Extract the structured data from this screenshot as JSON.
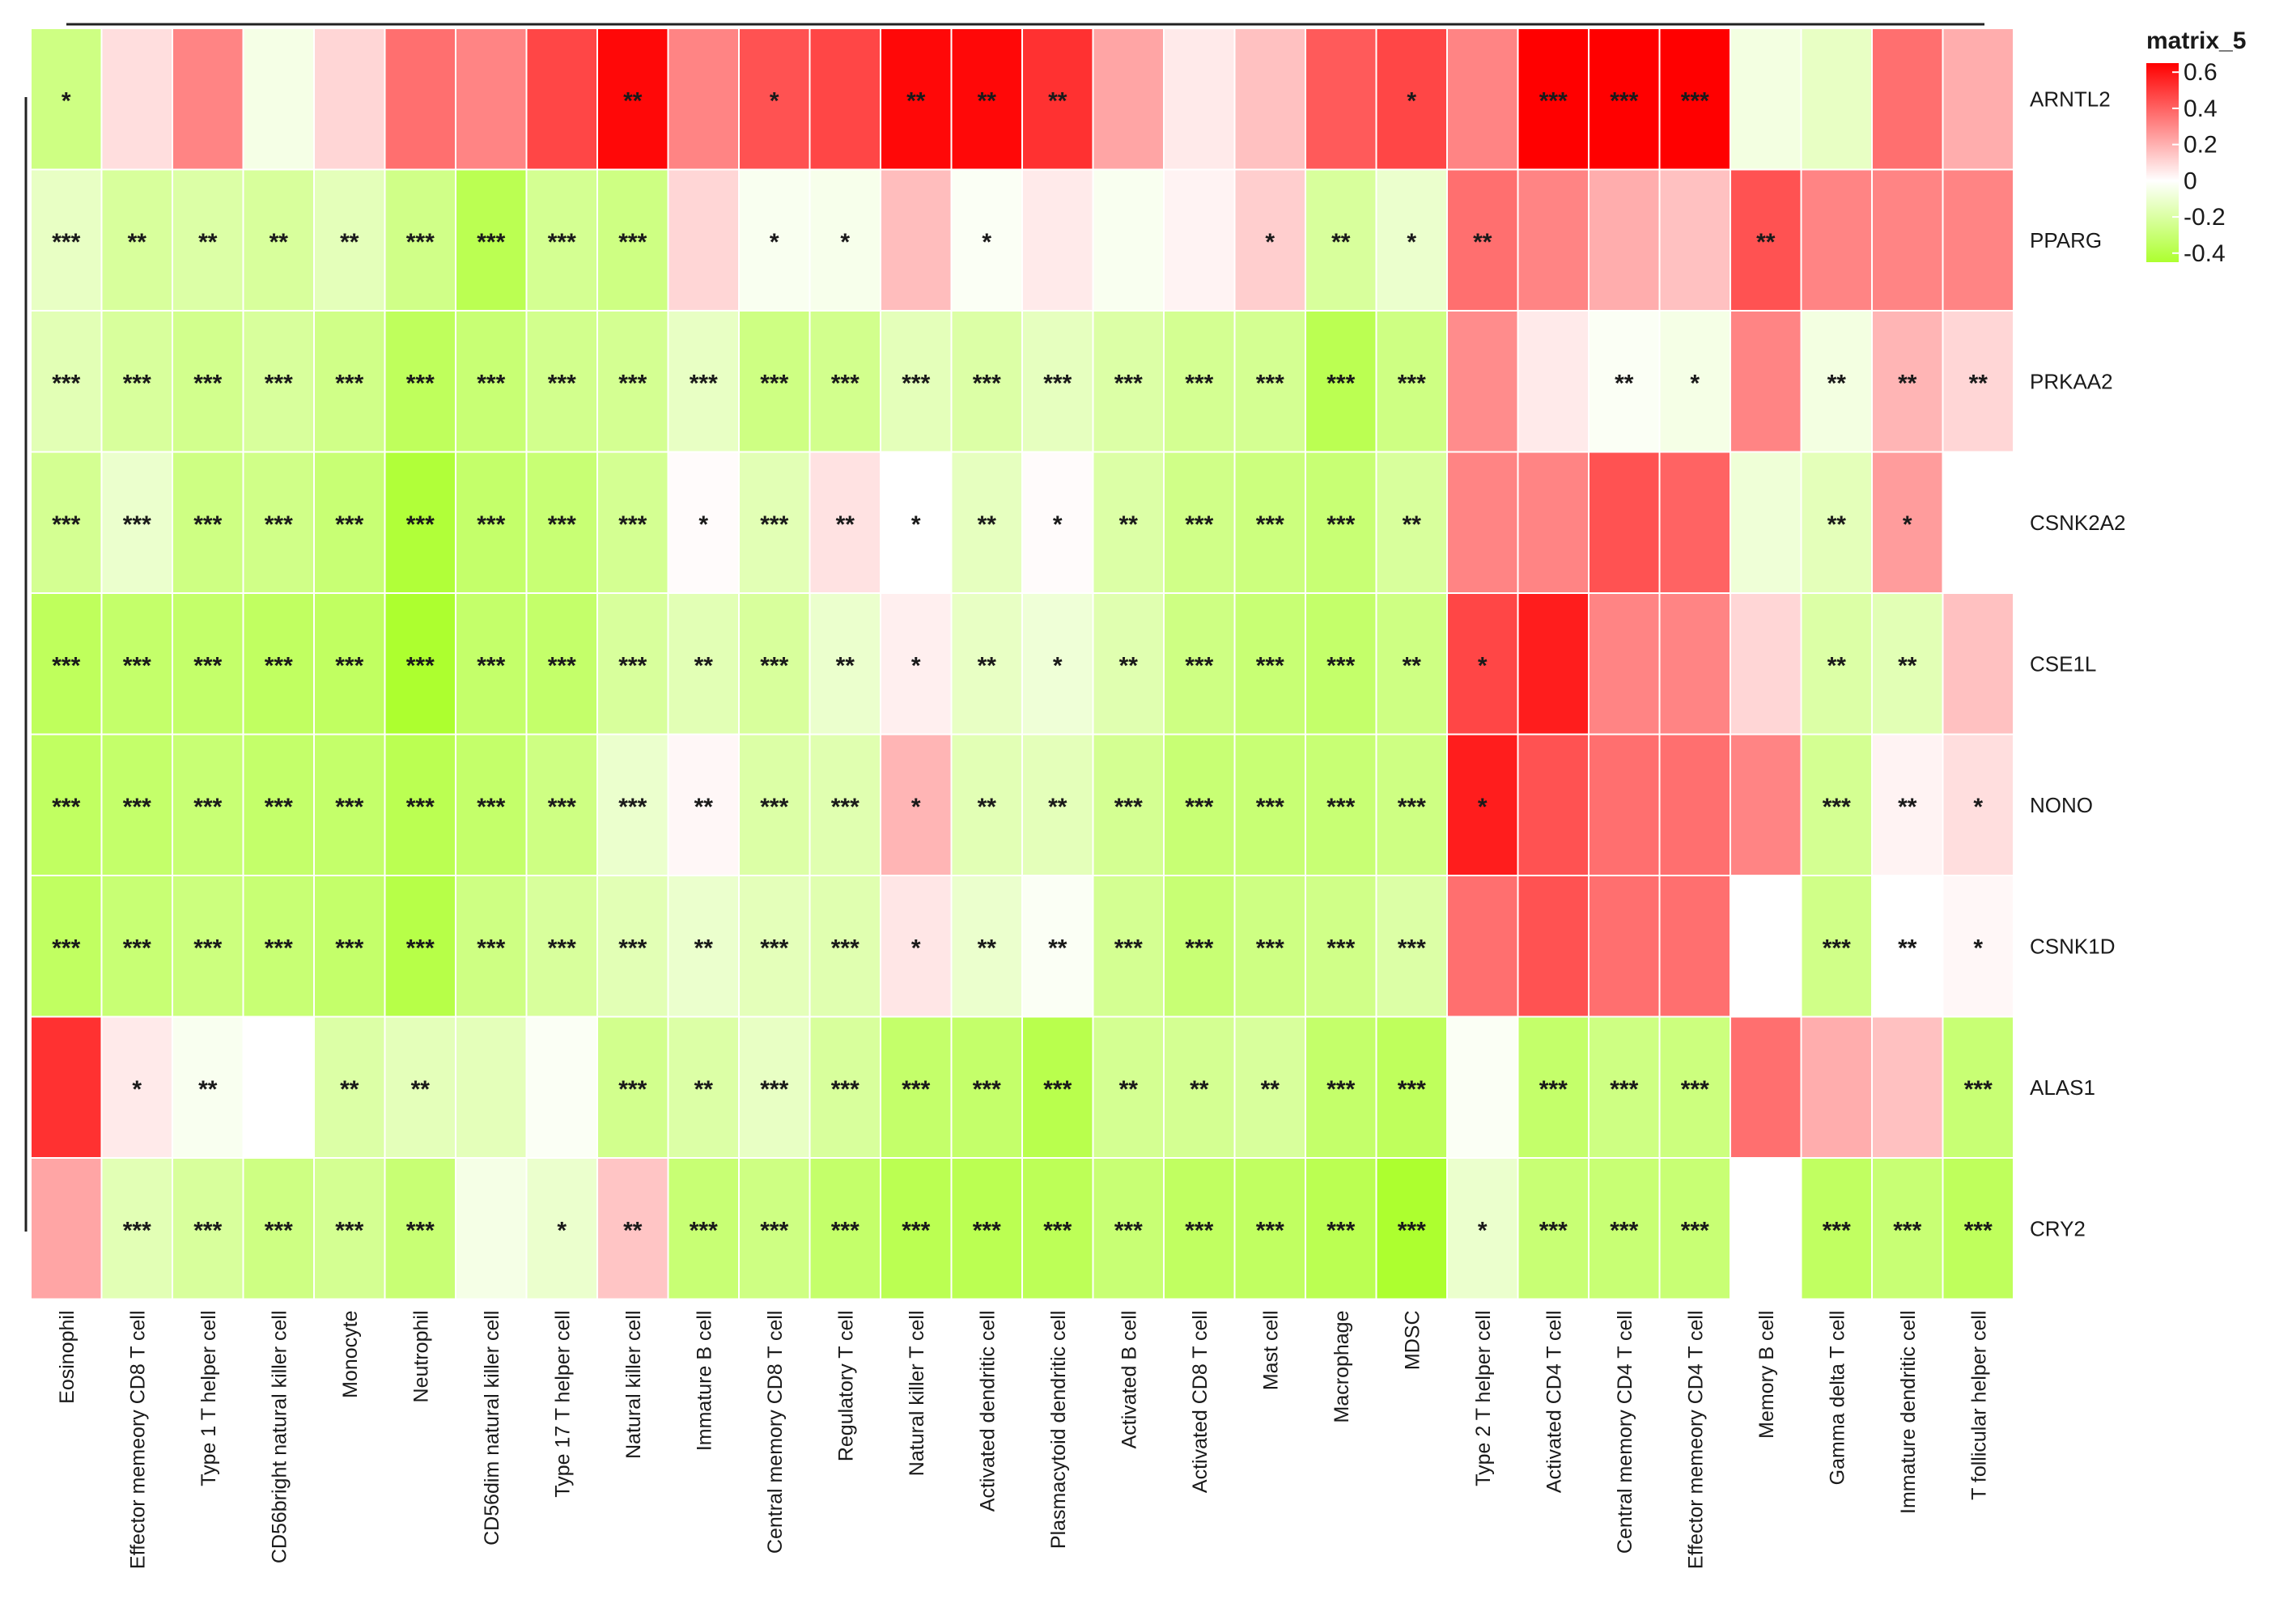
{
  "chart_data": {
    "type": "heatmap",
    "title": "",
    "legend": {
      "title": "matrix_5",
      "ticks": [
        "0.6",
        "0.4",
        "0.2",
        "0",
        "-0.2",
        "-0.4"
      ],
      "tick_values": [
        0.6,
        0.4,
        0.2,
        0,
        -0.2,
        -0.4
      ],
      "range": [
        -0.45,
        0.65
      ],
      "colors": {
        "low": "#adff2f",
        "mid": "#ffffff",
        "high": "#ff0000"
      }
    },
    "columns": [
      "Eosinophil",
      "Effector memeory CD8 T cell",
      "Type 1 T helper cell",
      "CD56bright natural killer cell",
      "Monocyte",
      "Neutrophil",
      "CD56dim natural killer cell",
      "Type 17 T helper cell",
      "Natural killer cell",
      "Immature  B cell",
      "Central memory CD8 T cell",
      "Regulatory T cell",
      "Natural killer T cell",
      "Activated dendritic cell",
      "Plasmacytoid dendritic cell",
      "Activated B cell",
      "Activated CD8 T cell",
      "Mast cell",
      "Macrophage",
      "MDSC",
      "Type 2 T helper cell",
      "Activated CD4 T cell",
      "Central memory CD4 T cell",
      "Effector memeory CD4 T cell",
      "Memory B cell",
      "Gamma delta T cell",
      "Immature dendritic cell",
      "T follicular helper cell"
    ],
    "rows": [
      "ARNTL2",
      "PPARG",
      "PRKAA2",
      "CSNK2A2",
      "CSE1L",
      "NONO",
      "CSNK1D",
      "ALAS1",
      "CRY2"
    ],
    "values": [
      [
        -0.25,
        0.08,
        0.3,
        -0.05,
        0.1,
        0.35,
        0.3,
        0.45,
        0.6,
        0.3,
        0.42,
        0.45,
        0.6,
        0.6,
        0.5,
        0.22,
        0.05,
        0.15,
        0.4,
        0.45,
        0.3,
        0.65,
        0.65,
        0.65,
        -0.06,
        -0.12,
        0.35,
        0.2
      ],
      [
        -0.12,
        -0.2,
        -0.18,
        -0.2,
        -0.14,
        -0.24,
        -0.35,
        -0.22,
        -0.25,
        0.1,
        -0.03,
        -0.04,
        0.16,
        -0.02,
        0.05,
        -0.03,
        0.03,
        0.12,
        -0.2,
        -0.1,
        0.35,
        0.3,
        0.2,
        0.15,
        0.42,
        0.3,
        0.3,
        0.3
      ],
      [
        -0.15,
        -0.2,
        -0.23,
        -0.2,
        -0.24,
        -0.33,
        -0.28,
        -0.23,
        -0.22,
        -0.12,
        -0.25,
        -0.23,
        -0.14,
        -0.18,
        -0.13,
        -0.18,
        -0.22,
        -0.22,
        -0.35,
        -0.25,
        0.28,
        0.05,
        -0.02,
        -0.05,
        0.3,
        -0.06,
        0.18,
        0.1
      ],
      [
        -0.22,
        -0.1,
        -0.25,
        -0.24,
        -0.28,
        -0.4,
        -0.3,
        -0.28,
        -0.22,
        0.01,
        -0.15,
        0.07,
        0.0,
        -0.13,
        0.01,
        -0.18,
        -0.24,
        -0.26,
        -0.28,
        -0.2,
        0.3,
        0.3,
        0.42,
        0.38,
        -0.08,
        -0.14,
        0.24,
        0.0
      ],
      [
        -0.33,
        -0.3,
        -0.3,
        -0.32,
        -0.32,
        -0.42,
        -0.3,
        -0.3,
        -0.2,
        -0.15,
        -0.2,
        -0.1,
        0.04,
        -0.12,
        -0.08,
        -0.16,
        -0.25,
        -0.28,
        -0.3,
        -0.25,
        0.45,
        0.55,
        0.3,
        0.3,
        0.1,
        -0.18,
        -0.15,
        0.15
      ],
      [
        -0.32,
        -0.3,
        -0.28,
        -0.3,
        -0.3,
        -0.35,
        -0.3,
        -0.25,
        -0.1,
        0.02,
        -0.18,
        -0.16,
        0.18,
        -0.15,
        -0.14,
        -0.22,
        -0.28,
        -0.28,
        -0.28,
        -0.25,
        0.55,
        0.42,
        0.35,
        0.35,
        0.3,
        -0.22,
        0.03,
        0.08
      ],
      [
        -0.32,
        -0.28,
        -0.26,
        -0.28,
        -0.3,
        -0.37,
        -0.25,
        -0.2,
        -0.15,
        -0.1,
        -0.14,
        -0.16,
        0.06,
        -0.1,
        -0.02,
        -0.22,
        -0.28,
        -0.25,
        -0.24,
        -0.18,
        0.35,
        0.42,
        0.35,
        0.35,
        0.0,
        -0.24,
        0.0,
        0.02
      ],
      [
        0.5,
        0.05,
        -0.03,
        0.0,
        -0.18,
        -0.14,
        -0.14,
        -0.02,
        -0.23,
        -0.18,
        -0.12,
        -0.2,
        -0.3,
        -0.3,
        -0.36,
        -0.22,
        -0.22,
        -0.2,
        -0.3,
        -0.33,
        -0.02,
        -0.3,
        -0.25,
        -0.26,
        0.35,
        0.2,
        0.15,
        -0.28
      ],
      [
        0.22,
        -0.15,
        -0.2,
        -0.25,
        -0.22,
        -0.28,
        -0.05,
        -0.1,
        0.14,
        -0.28,
        -0.25,
        -0.3,
        -0.35,
        -0.35,
        -0.34,
        -0.28,
        -0.32,
        -0.32,
        -0.35,
        -0.42,
        -0.1,
        -0.28,
        -0.28,
        -0.28,
        0.0,
        -0.32,
        -0.28,
        -0.33
      ]
    ],
    "significance": [
      [
        "*",
        "",
        "",
        "",
        "",
        "",
        "",
        "",
        "**",
        "",
        "*",
        "",
        "**",
        "**",
        "**",
        "",
        "",
        "",
        "",
        "*",
        "",
        "***",
        "***",
        "***",
        "",
        "",
        "",
        ""
      ],
      [
        "***",
        "**",
        "**",
        "**",
        "**",
        "***",
        "***",
        "***",
        "***",
        "",
        "*",
        "*",
        "",
        "*",
        "",
        "",
        "",
        "*",
        "**",
        "*",
        "**",
        "",
        "",
        "",
        "**",
        "",
        "",
        ""
      ],
      [
        "***",
        "***",
        "***",
        "***",
        "***",
        "***",
        "***",
        "***",
        "***",
        "***",
        "***",
        "***",
        "***",
        "***",
        "***",
        "***",
        "***",
        "***",
        "***",
        "***",
        "",
        "",
        "**",
        "*",
        "",
        "**",
        "**",
        "**"
      ],
      [
        "***",
        "***",
        "***",
        "***",
        "***",
        "***",
        "***",
        "***",
        "***",
        "*",
        "***",
        "**",
        "*",
        "**",
        "*",
        "**",
        "***",
        "***",
        "***",
        "**",
        "",
        "",
        "",
        "",
        "",
        "**",
        "*",
        ""
      ],
      [
        "***",
        "***",
        "***",
        "***",
        "***",
        "***",
        "***",
        "***",
        "***",
        "**",
        "***",
        "**",
        "*",
        "**",
        "*",
        "**",
        "***",
        "***",
        "***",
        "**",
        "*",
        "",
        "",
        "",
        "",
        "**",
        "**",
        ""
      ],
      [
        "***",
        "***",
        "***",
        "***",
        "***",
        "***",
        "***",
        "***",
        "***",
        "**",
        "***",
        "***",
        "*",
        "**",
        "**",
        "***",
        "***",
        "***",
        "***",
        "***",
        "*",
        "",
        "",
        "",
        "",
        "***",
        "**",
        "*"
      ],
      [
        "***",
        "***",
        "***",
        "***",
        "***",
        "***",
        "***",
        "***",
        "***",
        "**",
        "***",
        "***",
        "*",
        "**",
        "**",
        "***",
        "***",
        "***",
        "***",
        "***",
        "",
        "",
        "",
        "",
        "",
        "***",
        "**",
        "*"
      ],
      [
        "",
        "*",
        "**",
        "",
        "**",
        "**",
        "",
        "",
        "***",
        "**",
        "***",
        "***",
        "***",
        "***",
        "***",
        "**",
        "**",
        "**",
        "***",
        "***",
        "",
        "***",
        "***",
        "***",
        "",
        "",
        "",
        "***"
      ],
      [
        "",
        "***",
        "***",
        "***",
        "***",
        "***",
        "",
        "*",
        "**",
        "***",
        "***",
        "***",
        "***",
        "***",
        "***",
        "***",
        "***",
        "***",
        "***",
        "***",
        "*",
        "***",
        "***",
        "***",
        "",
        "***",
        "***",
        "***"
      ]
    ]
  }
}
